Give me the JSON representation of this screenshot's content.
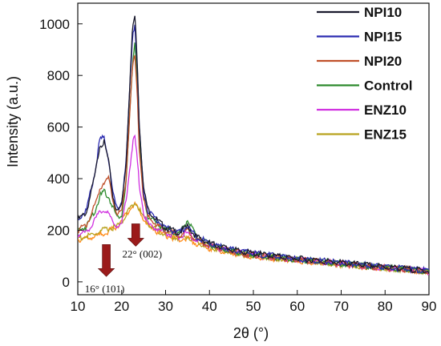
{
  "chart_data": {
    "type": "line",
    "xlabel": "2θ (°)",
    "ylabel": "Intensity (a.u.)",
    "xlim": [
      10,
      90
    ],
    "ylim": [
      -50,
      1080
    ],
    "xticks": [
      "10",
      "20",
      "30",
      "40",
      "50",
      "60",
      "70",
      "80",
      "90"
    ],
    "yticks": [
      "0",
      "200",
      "400",
      "600",
      "800",
      "1000"
    ],
    "grid": false,
    "legend_position": "top-right",
    "series": [
      {
        "name": "NPI10",
        "color": "#1a1a2e",
        "x": [
          10,
          12,
          14,
          15,
          16,
          17,
          18,
          19,
          20,
          21,
          22,
          22.5,
          23,
          23.5,
          24,
          25,
          26,
          28,
          30,
          33,
          35,
          37,
          40,
          45,
          50,
          55,
          60,
          65,
          70,
          75,
          80,
          85,
          90
        ],
        "y": [
          240,
          270,
          420,
          530,
          540,
          470,
          330,
          270,
          300,
          460,
          820,
          990,
          1030,
          880,
          620,
          360,
          280,
          240,
          210,
          190,
          215,
          175,
          150,
          125,
          110,
          100,
          90,
          82,
          74,
          66,
          58,
          50,
          42
        ]
      },
      {
        "name": "NPI15",
        "color": "#2b2bb0",
        "x": [
          10,
          12,
          14,
          15,
          16,
          17,
          18,
          19,
          20,
          21,
          22,
          22.5,
          23,
          23.5,
          24,
          25,
          26,
          28,
          30,
          33,
          35,
          37,
          40,
          45,
          50,
          55,
          60,
          65,
          70,
          75,
          80,
          85,
          90
        ],
        "y": [
          240,
          280,
          430,
          550,
          560,
          480,
          340,
          280,
          310,
          460,
          800,
          960,
          1000,
          850,
          600,
          350,
          275,
          240,
          210,
          190,
          215,
          175,
          150,
          125,
          110,
          100,
          90,
          82,
          74,
          66,
          58,
          50,
          42
        ]
      },
      {
        "name": "NPI20",
        "color": "#c0502a",
        "x": [
          10,
          12,
          14,
          15,
          16,
          17,
          18,
          19,
          20,
          21,
          22,
          22.5,
          23,
          23.5,
          24,
          25,
          26,
          28,
          30,
          33,
          35,
          37,
          40,
          45,
          50,
          55,
          60,
          65,
          70,
          75,
          80,
          85,
          90
        ],
        "y": [
          200,
          220,
          300,
          360,
          390,
          400,
          320,
          260,
          270,
          400,
          700,
          840,
          870,
          740,
          520,
          320,
          250,
          220,
          200,
          180,
          200,
          165,
          140,
          118,
          104,
          95,
          86,
          78,
          70,
          62,
          55,
          48,
          40
        ]
      },
      {
        "name": "Control",
        "color": "#2e8b2e",
        "x": [
          10,
          12,
          14,
          15,
          16,
          17,
          18,
          19,
          20,
          21,
          22,
          22.5,
          23,
          23.5,
          24,
          25,
          26,
          28,
          30,
          33,
          35,
          37,
          40,
          45,
          50,
          55,
          60,
          65,
          70,
          75,
          80,
          85,
          90
        ],
        "y": [
          200,
          215,
          280,
          330,
          350,
          330,
          290,
          250,
          260,
          380,
          700,
          850,
          930,
          790,
          560,
          330,
          255,
          225,
          205,
          185,
          240,
          175,
          145,
          120,
          106,
          96,
          87,
          79,
          71,
          63,
          56,
          48,
          40
        ]
      },
      {
        "name": "ENZ10",
        "color": "#d030e0",
        "x": [
          10,
          12,
          14,
          15,
          16,
          17,
          18,
          19,
          20,
          21,
          22,
          22.5,
          23,
          23.5,
          24,
          25,
          26,
          28,
          30,
          33,
          35,
          37,
          40,
          45,
          50,
          55,
          60,
          65,
          70,
          75,
          80,
          85,
          90
        ],
        "y": [
          180,
          195,
          240,
          270,
          280,
          260,
          235,
          215,
          225,
          320,
          460,
          540,
          560,
          480,
          380,
          270,
          225,
          205,
          190,
          175,
          190,
          160,
          140,
          118,
          104,
          95,
          86,
          78,
          70,
          62,
          55,
          48,
          40
        ]
      },
      {
        "name": "ENZ15",
        "color": "#b8a21e",
        "x": [
          10,
          12,
          14,
          15,
          16,
          17,
          18,
          19,
          20,
          21,
          22,
          22.5,
          23,
          23.5,
          24,
          25,
          26,
          28,
          30,
          33,
          35,
          37,
          40,
          45,
          50,
          55,
          60,
          65,
          70,
          75,
          80,
          85,
          90
        ],
        "y": [
          170,
          175,
          185,
          195,
          200,
          205,
          210,
          215,
          230,
          260,
          290,
          300,
          305,
          295,
          280,
          250,
          225,
          200,
          185,
          170,
          175,
          155,
          135,
          115,
          102,
          93,
          85,
          77,
          69,
          61,
          54,
          47,
          39
        ]
      },
      {
        "name": "",
        "color": "#ff8c1a",
        "x": [
          10,
          12,
          14,
          15,
          16,
          17,
          18,
          19,
          20,
          21,
          22,
          22.5,
          23,
          23.5,
          24,
          25,
          26,
          28,
          30,
          33,
          35,
          37,
          40,
          45,
          50,
          55,
          60,
          65,
          70,
          75,
          80,
          85,
          90
        ],
        "y": [
          165,
          168,
          175,
          182,
          188,
          195,
          205,
          215,
          235,
          260,
          285,
          295,
          298,
          290,
          275,
          245,
          220,
          195,
          180,
          165,
          170,
          150,
          130,
          112,
          99,
          90,
          82,
          75,
          67,
          60,
          53,
          46,
          38
        ]
      }
    ],
    "annotations": [
      {
        "text": "22° (002)",
        "x": 23.2,
        "y": 200,
        "color": "#9b1b1b"
      },
      {
        "text": "16° (101)",
        "x": 16.5,
        "y": 120,
        "color": "#9b1b1b"
      }
    ]
  }
}
